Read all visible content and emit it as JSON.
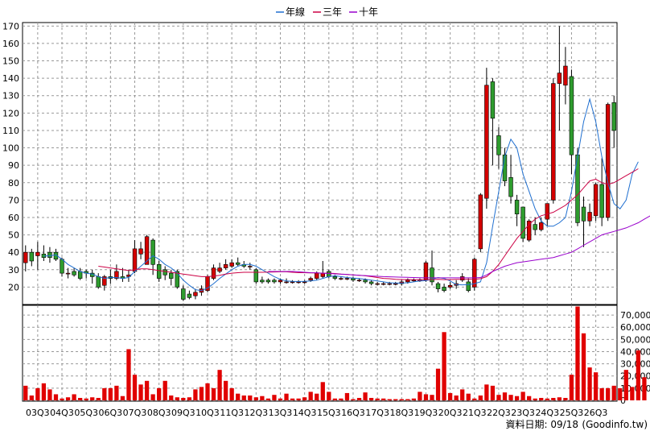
{
  "chart_data": [
    {
      "type": "candlestick",
      "title": "",
      "legend_position": "top-center",
      "legend": [
        {
          "name": "年線",
          "color": "#1f6fd0"
        },
        {
          "name": "三年",
          "color": "#cc0044"
        },
        {
          "name": "十年",
          "color": "#9900cc"
        }
      ],
      "ylim": [
        10,
        172
      ],
      "y_ticks": [
        20,
        30,
        40,
        50,
        60,
        70,
        80,
        90,
        100,
        110,
        120,
        130,
        140,
        150,
        160,
        170
      ],
      "grid": true,
      "colors": {
        "up": "#d40000",
        "down": "#2e9c2e"
      },
      "candles": [
        {
          "o": 34,
          "h": 44,
          "l": 29,
          "c": 40
        },
        {
          "o": 40,
          "h": 42,
          "l": 32,
          "c": 35
        },
        {
          "o": 38,
          "h": 46,
          "l": 30,
          "c": 40
        },
        {
          "o": 39,
          "h": 44,
          "l": 35,
          "c": 37
        },
        {
          "o": 40,
          "h": 43,
          "l": 34,
          "c": 37
        },
        {
          "o": 40,
          "h": 42,
          "l": 35,
          "c": 36
        },
        {
          "o": 36,
          "h": 37,
          "l": 26,
          "c": 28
        },
        {
          "o": 28,
          "h": 31,
          "l": 25,
          "c": 28
        },
        {
          "o": 29,
          "h": 31,
          "l": 26,
          "c": 27
        },
        {
          "o": 29,
          "h": 31,
          "l": 24,
          "c": 25
        },
        {
          "o": 29,
          "h": 30,
          "l": 25,
          "c": 28
        },
        {
          "o": 28,
          "h": 30,
          "l": 22,
          "c": 26
        },
        {
          "o": 26,
          "h": 28,
          "l": 19,
          "c": 20
        },
        {
          "o": 21,
          "h": 27,
          "l": 18,
          "c": 26
        },
        {
          "o": 26,
          "h": 30,
          "l": 22,
          "c": 25
        },
        {
          "o": 25,
          "h": 33,
          "l": 24,
          "c": 29
        },
        {
          "o": 26,
          "h": 31,
          "l": 23,
          "c": 25
        },
        {
          "o": 26,
          "h": 30,
          "l": 23,
          "c": 27
        },
        {
          "o": 29,
          "h": 47,
          "l": 28,
          "c": 42
        },
        {
          "o": 39,
          "h": 46,
          "l": 36,
          "c": 42
        },
        {
          "o": 33,
          "h": 50,
          "l": 33,
          "c": 49
        },
        {
          "o": 47,
          "h": 48,
          "l": 27,
          "c": 33
        },
        {
          "o": 33,
          "h": 35,
          "l": 23,
          "c": 25
        },
        {
          "o": 30,
          "h": 32,
          "l": 24,
          "c": 27
        },
        {
          "o": 28,
          "h": 30,
          "l": 21,
          "c": 25
        },
        {
          "o": 29,
          "h": 30,
          "l": 19,
          "c": 20
        },
        {
          "o": 19,
          "h": 21,
          "l": 12,
          "c": 13
        },
        {
          "o": 16,
          "h": 18,
          "l": 13,
          "c": 14
        },
        {
          "o": 15,
          "h": 19,
          "l": 13,
          "c": 17
        },
        {
          "o": 17,
          "h": 21,
          "l": 15,
          "c": 19
        },
        {
          "o": 18,
          "h": 27,
          "l": 17,
          "c": 26
        },
        {
          "o": 25,
          "h": 33,
          "l": 24,
          "c": 31
        },
        {
          "o": 29,
          "h": 34,
          "l": 28,
          "c": 31
        },
        {
          "o": 31,
          "h": 36,
          "l": 30,
          "c": 33
        },
        {
          "o": 32,
          "h": 36,
          "l": 31,
          "c": 34
        },
        {
          "o": 34,
          "h": 37,
          "l": 32,
          "c": 33
        },
        {
          "o": 33,
          "h": 35,
          "l": 31,
          "c": 32
        },
        {
          "o": 32,
          "h": 34,
          "l": 30,
          "c": 32
        },
        {
          "o": 30,
          "h": 31,
          "l": 22,
          "c": 23
        },
        {
          "o": 24,
          "h": 26,
          "l": 22,
          "c": 23
        },
        {
          "o": 24,
          "h": 25,
          "l": 22,
          "c": 23
        },
        {
          "o": 24,
          "h": 25,
          "l": 22,
          "c": 23
        },
        {
          "o": 23,
          "h": 25,
          "l": 22,
          "c": 24
        },
        {
          "o": 23,
          "h": 25,
          "l": 22,
          "c": 23
        },
        {
          "o": 23,
          "h": 24,
          "l": 22,
          "c": 23
        },
        {
          "o": 23,
          "h": 24,
          "l": 22,
          "c": 23
        },
        {
          "o": 23,
          "h": 24,
          "l": 22,
          "c": 23
        },
        {
          "o": 24,
          "h": 26,
          "l": 23,
          "c": 25
        },
        {
          "o": 25,
          "h": 29,
          "l": 24,
          "c": 28
        },
        {
          "o": 26,
          "h": 35,
          "l": 25,
          "c": 28
        },
        {
          "o": 29,
          "h": 30,
          "l": 25,
          "c": 26
        },
        {
          "o": 26,
          "h": 27,
          "l": 24,
          "c": 25
        },
        {
          "o": 25,
          "h": 26,
          "l": 24,
          "c": 25
        },
        {
          "o": 25,
          "h": 26,
          "l": 24,
          "c": 25
        },
        {
          "o": 25,
          "h": 26,
          "l": 23,
          "c": 24
        },
        {
          "o": 24,
          "h": 25,
          "l": 23,
          "c": 24
        },
        {
          "o": 24,
          "h": 25,
          "l": 22,
          "c": 23
        },
        {
          "o": 23,
          "h": 24,
          "l": 21,
          "c": 22
        },
        {
          "o": 22,
          "h": 23,
          "l": 21,
          "c": 22
        },
        {
          "o": 22,
          "h": 23,
          "l": 21,
          "c": 22
        },
        {
          "o": 22,
          "h": 23,
          "l": 21,
          "c": 22
        },
        {
          "o": 22,
          "h": 23,
          "l": 21,
          "c": 22
        },
        {
          "o": 22,
          "h": 24,
          "l": 21,
          "c": 23
        },
        {
          "o": 23,
          "h": 25,
          "l": 22,
          "c": 24
        },
        {
          "o": 24,
          "h": 25,
          "l": 23,
          "c": 24
        },
        {
          "o": 24,
          "h": 25,
          "l": 23,
          "c": 24
        },
        {
          "o": 24,
          "h": 35,
          "l": 23,
          "c": 34
        },
        {
          "o": 31,
          "h": 41,
          "l": 21,
          "c": 23
        },
        {
          "o": 22,
          "h": 23,
          "l": 17,
          "c": 19
        },
        {
          "o": 20,
          "h": 22,
          "l": 17,
          "c": 18
        },
        {
          "o": 20,
          "h": 23,
          "l": 19,
          "c": 21
        },
        {
          "o": 21,
          "h": 24,
          "l": 19,
          "c": 22
        },
        {
          "o": 24,
          "h": 28,
          "l": 23,
          "c": 26
        },
        {
          "o": 23,
          "h": 25,
          "l": 17,
          "c": 18
        },
        {
          "o": 20,
          "h": 37,
          "l": 18,
          "c": 36
        },
        {
          "o": 42,
          "h": 74,
          "l": 40,
          "c": 73
        },
        {
          "o": 71,
          "h": 146,
          "l": 65,
          "c": 136
        },
        {
          "o": 138,
          "h": 140,
          "l": 90,
          "c": 117
        },
        {
          "o": 107,
          "h": 112,
          "l": 88,
          "c": 96
        },
        {
          "o": 96,
          "h": 100,
          "l": 78,
          "c": 81
        },
        {
          "o": 83,
          "h": 96,
          "l": 68,
          "c": 72
        },
        {
          "o": 70,
          "h": 73,
          "l": 55,
          "c": 62
        },
        {
          "o": 66,
          "h": 66,
          "l": 46,
          "c": 48
        },
        {
          "o": 47,
          "h": 59,
          "l": 46,
          "c": 58
        },
        {
          "o": 56,
          "h": 60,
          "l": 50,
          "c": 53
        },
        {
          "o": 53,
          "h": 60,
          "l": 52,
          "c": 57
        },
        {
          "o": 59,
          "h": 68,
          "l": 55,
          "c": 68
        },
        {
          "o": 70,
          "h": 140,
          "l": 68,
          "c": 137
        },
        {
          "o": 137,
          "h": 170,
          "l": 110,
          "c": 143
        },
        {
          "o": 136,
          "h": 158,
          "l": 125,
          "c": 147
        },
        {
          "o": 141,
          "h": 145,
          "l": 85,
          "c": 96
        },
        {
          "o": 96,
          "h": 100,
          "l": 55,
          "c": 57
        },
        {
          "o": 66,
          "h": 72,
          "l": 43,
          "c": 58
        },
        {
          "o": 58,
          "h": 68,
          "l": 55,
          "c": 63
        },
        {
          "o": 61,
          "h": 80,
          "l": 58,
          "c": 79
        },
        {
          "o": 79,
          "h": 94,
          "l": 55,
          "c": 60
        },
        {
          "o": 60,
          "h": 126,
          "l": 58,
          "c": 125
        },
        {
          "o": 126,
          "h": 130,
          "l": 100,
          "c": 110
        }
      ],
      "series": [
        {
          "name": "年線",
          "type": "line",
          "values": [
            null,
            null,
            null,
            37.8,
            38,
            38.5,
            36,
            33,
            31,
            29,
            28,
            27.5,
            26,
            25,
            25.5,
            25.5,
            25,
            25.5,
            29,
            32,
            35,
            38,
            36,
            33,
            31,
            28,
            24,
            21,
            18.5,
            18,
            19.5,
            22,
            25,
            27.5,
            30,
            32,
            33,
            33,
            32,
            30,
            28,
            26,
            24.5,
            23.5,
            23.3,
            23.2,
            23.3,
            23.5,
            24,
            25,
            26,
            26.5,
            26,
            25.5,
            25.2,
            25,
            24.5,
            24,
            23.5,
            23,
            22.5,
            22.3,
            22.3,
            22.5,
            23,
            23.5,
            23.7,
            24.5,
            25.5,
            25,
            23.5,
            21.5,
            21.3,
            21.5,
            22,
            23,
            34,
            55,
            75,
            95,
            105,
            100,
            85,
            75,
            65,
            58,
            55,
            55,
            57,
            60,
            75,
            95,
            115,
            128,
            115,
            95,
            80,
            68,
            65,
            70,
            85,
            92
          ]
        },
        {
          "name": "三年",
          "type": "line",
          "values": [
            null,
            null,
            null,
            null,
            null,
            null,
            null,
            null,
            null,
            null,
            null,
            null,
            32,
            31.5,
            31,
            30.5,
            30,
            29.5,
            30,
            30.5,
            30.5,
            30,
            29.5,
            29,
            28.5,
            28,
            27.5,
            27,
            26.5,
            26,
            26,
            26.3,
            26.8,
            27.5,
            28,
            28.3,
            28.5,
            28.5,
            28.5,
            28.5,
            28.6,
            28.7,
            28.8,
            28.8,
            28.5,
            28.3,
            28.3,
            28.2,
            28.2,
            28,
            28,
            27.8,
            27.5,
            27.3,
            27,
            26.8,
            26.5,
            26,
            25.5,
            25,
            24.8,
            24.5,
            24.3,
            24.3,
            24.2,
            24.2,
            24.3,
            24.3,
            24.5,
            24.3,
            24.3,
            24.5,
            24.5,
            24.5,
            24.5,
            24.8,
            26,
            29,
            33,
            38,
            43,
            48,
            52,
            56,
            59,
            61,
            62,
            63,
            65,
            67,
            70,
            73,
            77,
            81,
            82,
            80,
            79,
            80,
            82,
            84,
            86,
            88
          ]
        },
        {
          "name": "十年",
          "type": "line",
          "values": [
            null,
            null,
            null,
            null,
            null,
            null,
            null,
            null,
            null,
            null,
            null,
            null,
            null,
            null,
            null,
            null,
            null,
            null,
            null,
            null,
            null,
            null,
            null,
            null,
            null,
            null,
            null,
            null,
            null,
            null,
            null,
            null,
            null,
            null,
            null,
            null,
            null,
            null,
            null,
            null,
            29,
            29,
            29,
            29,
            29,
            28.8,
            28.5,
            28.3,
            28.2,
            28,
            27.8,
            27.6,
            27.4,
            27.2,
            27,
            26.8,
            26.6,
            26.4,
            26.2,
            26,
            25.9,
            25.8,
            25.7,
            25.6,
            25.5,
            25.4,
            25.3,
            25.3,
            25.3,
            25.3,
            25.3,
            25.3,
            25.3,
            25.3,
            25.3,
            25.5,
            27,
            29,
            30.5,
            32,
            33,
            34,
            34.5,
            35,
            35.5,
            36,
            36.5,
            37,
            38,
            39,
            40,
            42,
            44,
            46,
            48,
            50,
            51,
            52,
            53,
            54,
            55.5,
            57,
            59,
            61
          ]
        }
      ]
    },
    {
      "type": "bar",
      "ylim": [
        0,
        78000
      ],
      "y_ticks": [
        0,
        10000,
        20000,
        30000,
        40000,
        50000,
        60000,
        70000
      ],
      "y_tick_labels": [
        "0",
        "10,000",
        "20,000",
        "30,000",
        "40,000",
        "50,000",
        "60,000",
        "70,000"
      ],
      "color": "#e00000",
      "values": [
        12000,
        4000,
        10000,
        14000,
        9000,
        5000,
        1500,
        2500,
        5000,
        2000,
        1500,
        2500,
        2000,
        10000,
        10000,
        12000,
        3500,
        42000,
        21000,
        13000,
        16000,
        5000,
        10000,
        16000,
        4000,
        2500,
        2000,
        2500,
        9000,
        11000,
        14000,
        10000,
        25000,
        16000,
        10000,
        5500,
        4000,
        4000,
        2500,
        3500,
        1500,
        4500,
        1500,
        5500,
        1500,
        1500,
        2500,
        7000,
        5500,
        15000,
        7000,
        1500,
        1500,
        6000,
        1000,
        2000,
        6500,
        2000,
        1500,
        1500,
        1000,
        1000,
        1000,
        1000,
        1500,
        7000,
        5000,
        4500,
        26000,
        56000,
        6000,
        4000,
        9000,
        5500,
        1500,
        4000,
        13000,
        12000,
        4500,
        6500,
        4500,
        3500,
        7000,
        3500,
        1500,
        2000,
        1500,
        2000,
        2500,
        2000,
        21000,
        77000,
        55000,
        27000,
        23000,
        10000,
        10000,
        12000,
        10000,
        25000,
        11000,
        41000,
        19000
      ]
    }
  ],
  "x_axis_labels": [
    "03Q3",
    "04Q3",
    "05Q3",
    "06Q3",
    "07Q3",
    "08Q3",
    "09Q3",
    "10Q3",
    "11Q3",
    "12Q3",
    "13Q3",
    "14Q3",
    "15Q3",
    "16Q3",
    "17Q3",
    "18Q3",
    "19Q3",
    "20Q3",
    "21Q3",
    "22Q3",
    "23Q3",
    "24Q3",
    "25Q3",
    "26Q3"
  ],
  "footer": {
    "date_label": "資料日期: 09/18",
    "source": "(Goodinfo.tw)"
  }
}
